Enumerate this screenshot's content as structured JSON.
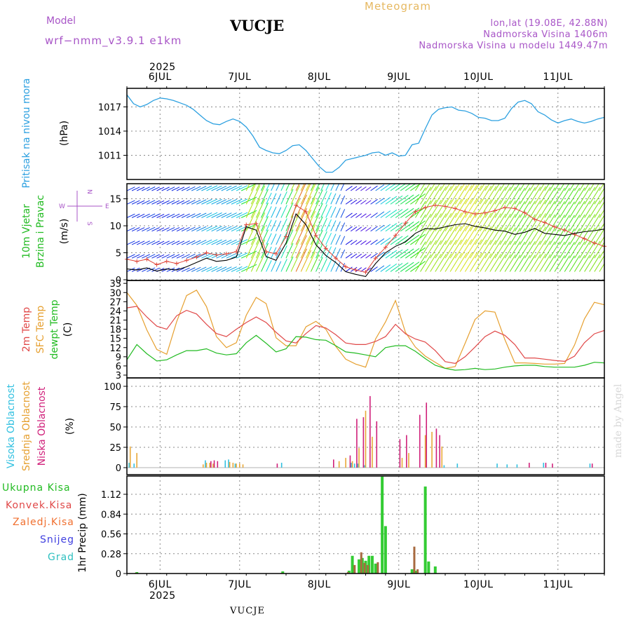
{
  "header": {
    "model_label": "Model",
    "model_name": "wrf−nmm_v3.9.1  e1km",
    "station": "VUCJE",
    "chart_title": "Meteogram",
    "coords": "lon,lat (19.08E, 42.88N)",
    "elev": "Nadmorska Visina 1406m",
    "elev_model": "Nadmorska Visina u modelu 1449.47m"
  },
  "x_axis": {
    "year": "2025",
    "day_labels": [
      "6JUL",
      "7JUL",
      "8JUL",
      "9JUL",
      "10JUL",
      "11JUL"
    ]
  },
  "footer_station": "VUCJE",
  "watermark": "made by Angel",
  "panels": {
    "pressure": {
      "ylabel_1": "Pritisak na nivou mora",
      "ylabel_2": "(hPa)",
      "ticks": [
        "1011",
        "1014",
        "1017"
      ]
    },
    "wind": {
      "ylabel_1": "10m Vjetar",
      "ylabel_2": "Brzina i Pravac",
      "ylabel_3": "(m/s)",
      "ticks": [
        "0",
        "5",
        "10",
        "15"
      ],
      "compass": {
        "n": "N",
        "w": "W",
        "e": "E",
        "s": "S"
      }
    },
    "temp": {
      "label_2m": "2m Temp",
      "label_sfc": "SFC Temp",
      "label_dew": "dewpt Temp",
      "unit": "(C)",
      "ticks": [
        "3",
        "6",
        "9",
        "12",
        "15",
        "18",
        "21",
        "24",
        "27",
        "30",
        "33"
      ]
    },
    "cloud": {
      "label_high": "Visoka Oblacnost",
      "label_mid": "Srednja Oblacnost",
      "label_low": "Niska Oblacnost",
      "unit": "(%)",
      "ticks": [
        "0",
        "25",
        "50",
        "75",
        "100"
      ]
    },
    "precip": {
      "ylabel": "1hr Precip (mm)",
      "ticks": [
        "0",
        "0.28",
        "0.56",
        "0.84",
        "1.12"
      ],
      "legend": [
        "Ukupna Kisa",
        "Konvek.Kisa",
        "Zaledj.Kisa",
        "Snijeg",
        "Grad"
      ]
    }
  },
  "colors": {
    "pressure": "#2ca0e0",
    "wind_speed": "#000000",
    "gust": "#e0463a",
    "temp2m": "#e04848",
    "sfc": "#e6a030",
    "dew": "#22bb22",
    "high": "#30c0e0",
    "mid": "#e8a838",
    "low": "#d0207a",
    "total": "#33cc33",
    "conv": "#a86a40",
    "frz": "#f07030",
    "snow": "#4040e0",
    "hail": "#30c0c0",
    "grid": "#888888"
  },
  "chart_data": [
    {
      "type": "line",
      "name": "pressure",
      "x": [
        0,
        2,
        4,
        6,
        8,
        10,
        12,
        14,
        16,
        18,
        20,
        22,
        24,
        26,
        28,
        30,
        32,
        34,
        36,
        38,
        40,
        42,
        44,
        46,
        48,
        50,
        52,
        54,
        56,
        58,
        60,
        62,
        64,
        66,
        68,
        70,
        72,
        74,
        76,
        78,
        80,
        82,
        84,
        86,
        88,
        90,
        92,
        94,
        96,
        98,
        100,
        102,
        104,
        106,
        108,
        110,
        112,
        114,
        116,
        118,
        120,
        122,
        124,
        126,
        128,
        130,
        132,
        134,
        136,
        138,
        140,
        142,
        144
      ],
      "values": [
        1018.5,
        1017.4,
        1017,
        1017.3,
        1017.8,
        1018.1,
        1018,
        1017.8,
        1017.5,
        1017.2,
        1016.7,
        1016,
        1015.3,
        1014.9,
        1014.8,
        1015.2,
        1015.5,
        1015.2,
        1014.5,
        1013.4,
        1012,
        1011.6,
        1011.3,
        1011.2,
        1011.6,
        1012.2,
        1012.3,
        1011.6,
        1010.6,
        1009.6,
        1008.9,
        1008.9,
        1009.5,
        1010.4,
        1010.6,
        1010.8,
        1011,
        1011.3,
        1011.4,
        1011,
        1011.3,
        1010.9,
        1011,
        1012.3,
        1012.5,
        1014.3,
        1016,
        1016.7,
        1016.9,
        1017,
        1016.6,
        1016.5,
        1016.2,
        1015.7,
        1015.6,
        1015.3,
        1015.3,
        1015.6,
        1016.8,
        1017.6,
        1017.8,
        1017.4,
        1016.4,
        1016,
        1015.4,
        1015,
        1015.3,
        1015.5,
        1015.2,
        1015,
        1015.2,
        1015.5,
        1015.7
      ]
    },
    {
      "type": "line",
      "name": "wind_speed_ms",
      "x": [
        0,
        3,
        6,
        9,
        12,
        15,
        18,
        21,
        24,
        27,
        30,
        33,
        36,
        39,
        42,
        45,
        48,
        51,
        54,
        57,
        60,
        63,
        66,
        69,
        72,
        75,
        78,
        81,
        84,
        87,
        90,
        93,
        96,
        99,
        102,
        105,
        108,
        111,
        114,
        117,
        120,
        123,
        126,
        129,
        132,
        135,
        138,
        141,
        144
      ],
      "values": [
        2,
        1.8,
        2.2,
        1.6,
        2,
        1.8,
        2.4,
        3.2,
        4,
        3.4,
        3.6,
        4.2,
        9.8,
        9.2,
        4.3,
        3.6,
        6.8,
        12.2,
        10.2,
        6.5,
        4.5,
        3.2,
        1.5,
        1,
        0.6,
        3,
        5,
        6.2,
        7,
        8.6,
        9.5,
        9.4,
        9.8,
        10.2,
        10.4,
        9.9,
        9.6,
        9.2,
        9,
        8.4,
        8.8,
        9.5,
        8.6,
        8.4,
        8.2,
        8.6,
        8.9,
        9.1,
        9.4
      ]
    },
    {
      "type": "line",
      "name": "wind_gust_ms",
      "x": [
        0,
        3,
        6,
        9,
        12,
        15,
        18,
        21,
        24,
        27,
        30,
        33,
        36,
        39,
        42,
        45,
        48,
        51,
        54,
        57,
        60,
        63,
        66,
        69,
        72,
        75,
        78,
        81,
        84,
        87,
        90,
        93,
        96,
        99,
        102,
        105,
        108,
        111,
        114,
        117,
        120,
        123,
        126,
        129,
        132,
        135,
        138,
        141,
        144
      ],
      "values": [
        3.8,
        3.4,
        3.8,
        2.8,
        3.4,
        3,
        3.6,
        4.2,
        5,
        4.6,
        4.8,
        5.2,
        10.2,
        10.4,
        5.2,
        4.8,
        8,
        13.8,
        12.6,
        8.2,
        5.8,
        4,
        2.4,
        1.8,
        1.4,
        4,
        6,
        8.2,
        10.5,
        12.6,
        13.4,
        13.8,
        13.6,
        13.2,
        12.6,
        12.2,
        12.4,
        12.8,
        13.4,
        13.2,
        12.4,
        11.2,
        10.6,
        9.8,
        9.2,
        8.4,
        7.6,
        6.8,
        6.2
      ]
    },
    {
      "type": "line",
      "name": "temp_2m_C",
      "x": [
        0,
        3,
        6,
        9,
        12,
        15,
        18,
        21,
        24,
        27,
        30,
        33,
        36,
        39,
        42,
        45,
        48,
        51,
        54,
        57,
        60,
        63,
        66,
        69,
        72,
        75,
        78,
        81,
        84,
        87,
        90,
        93,
        96,
        99,
        102,
        105,
        108,
        111,
        114,
        117,
        120,
        123,
        126,
        129,
        132,
        135,
        138,
        141,
        144
      ],
      "values": [
        25,
        25.5,
        22,
        19,
        18,
        22.4,
        24.2,
        23,
        19.6,
        16.6,
        15.6,
        18,
        20.2,
        22,
        20.2,
        17,
        14.2,
        13.5,
        16.6,
        19.2,
        18.4,
        16.2,
        13.5,
        13,
        13,
        14,
        15.6,
        19.6,
        16.5,
        14.8,
        13.8,
        11,
        7.4,
        6.8,
        9,
        12.2,
        15.6,
        17.4,
        16,
        13,
        8.6,
        8.6,
        8.2,
        7.8,
        7.5,
        9.2,
        13.6,
        16.5,
        17.6
      ]
    },
    {
      "type": "line",
      "name": "sfc_temp_C",
      "x": [
        0,
        3,
        6,
        9,
        12,
        15,
        18,
        21,
        24,
        27,
        30,
        33,
        36,
        39,
        42,
        45,
        48,
        51,
        54,
        57,
        60,
        63,
        66,
        69,
        72,
        75,
        78,
        81,
        84,
        87,
        90,
        93,
        96,
        99,
        102,
        105,
        108,
        111,
        114,
        117,
        120,
        123,
        126,
        129,
        132,
        135,
        138,
        141,
        144
      ],
      "values": [
        30,
        25.8,
        17.8,
        11.4,
        9.8,
        20.4,
        29,
        30.8,
        25.4,
        15.6,
        12,
        13.6,
        22.6,
        28.4,
        26.4,
        15.2,
        12.6,
        12.6,
        18.8,
        20.6,
        18,
        12.4,
        8.2,
        6.6,
        5.6,
        14.8,
        20.4,
        27.4,
        17,
        12.2,
        9.2,
        7.2,
        5.2,
        5.8,
        13.4,
        21.2,
        24,
        23.6,
        14.6,
        7,
        7,
        6.8,
        6.6,
        6.6,
        6.8,
        12.8,
        21.4,
        26.8,
        26
      ]
    },
    {
      "type": "line",
      "name": "dewpt_temp_C",
      "x": [
        0,
        3,
        6,
        9,
        12,
        15,
        18,
        21,
        24,
        27,
        30,
        33,
        36,
        39,
        42,
        45,
        48,
        51,
        54,
        57,
        60,
        63,
        66,
        69,
        72,
        75,
        78,
        81,
        84,
        87,
        90,
        93,
        96,
        99,
        102,
        105,
        108,
        111,
        114,
        117,
        120,
        123,
        126,
        129,
        132,
        135,
        138,
        141,
        144
      ],
      "values": [
        8,
        13,
        10,
        7.6,
        8,
        9.6,
        11,
        11,
        11.6,
        10.2,
        9.6,
        10,
        13.6,
        16,
        13.4,
        10.6,
        11.6,
        15.6,
        15.4,
        14.6,
        14.4,
        12.6,
        10.6,
        10.2,
        9.6,
        9,
        12,
        12.6,
        12.6,
        10.8,
        8.4,
        6.2,
        5.2,
        4.6,
        4.8,
        5.2,
        4.8,
        5,
        5.6,
        6,
        6.2,
        6.2,
        5.8,
        5.6,
        5.6,
        5.6,
        6.2,
        7.2,
        7
      ]
    },
    {
      "type": "bar",
      "name": "cloud_cover_pct",
      "series": [
        {
          "name": "high",
          "x": [
            1,
            2.5,
            24,
            30,
            31,
            33,
            47,
            68,
            69,
            70,
            72,
            96,
            100,
            112,
            115,
            118,
            126,
            140
          ],
          "values": [
            6,
            5,
            9,
            9,
            10,
            5,
            6,
            6,
            5,
            5,
            3,
            3,
            5,
            5,
            4,
            4,
            6,
            5
          ]
        },
        {
          "name": "mid",
          "x": [
            1,
            3,
            23,
            24,
            25,
            26,
            31,
            32,
            33,
            34,
            35,
            64,
            66,
            68,
            70,
            72,
            74,
            83,
            85,
            90,
            92,
            95
          ],
          "values": [
            26,
            18,
            4,
            6,
            6,
            5,
            7,
            6,
            5,
            5,
            4,
            8,
            12,
            8,
            24,
            70,
            38,
            12,
            18,
            40,
            44,
            26
          ]
        },
        {
          "name": "low",
          "x": [
            25,
            26,
            27,
            45,
            62,
            67,
            69,
            71,
            73,
            75,
            82,
            84,
            88,
            90,
            93,
            94,
            121,
            126,
            128,
            140
          ],
          "values": [
            8,
            9,
            8,
            5,
            10,
            15,
            60,
            62,
            88,
            57,
            35,
            40,
            65,
            80,
            48,
            40,
            6,
            6,
            5,
            5
          ]
        }
      ]
    },
    {
      "type": "bar",
      "name": "precip_1hr_mm",
      "series": [
        {
          "name": "total",
          "x": [
            3,
            47,
            67,
            68,
            70,
            71,
            72,
            73,
            74,
            75,
            77,
            78,
            86,
            87,
            90,
            91,
            93
          ],
          "values": [
            0.02,
            0.03,
            0.04,
            0.25,
            0.2,
            0.22,
            0.18,
            0.25,
            0.25,
            0.14,
            1.37,
            0.67,
            0.06,
            0.04,
            1.23,
            0.17,
            0.1
          ]
        },
        {
          "name": "conv",
          "x": [
            3,
            47,
            67,
            69,
            71,
            72,
            73,
            76,
            87,
            88
          ],
          "values": [
            0.01,
            0.01,
            0.02,
            0.12,
            0.3,
            0.15,
            0.12,
            0.16,
            0.38,
            0.06
          ]
        }
      ]
    }
  ]
}
